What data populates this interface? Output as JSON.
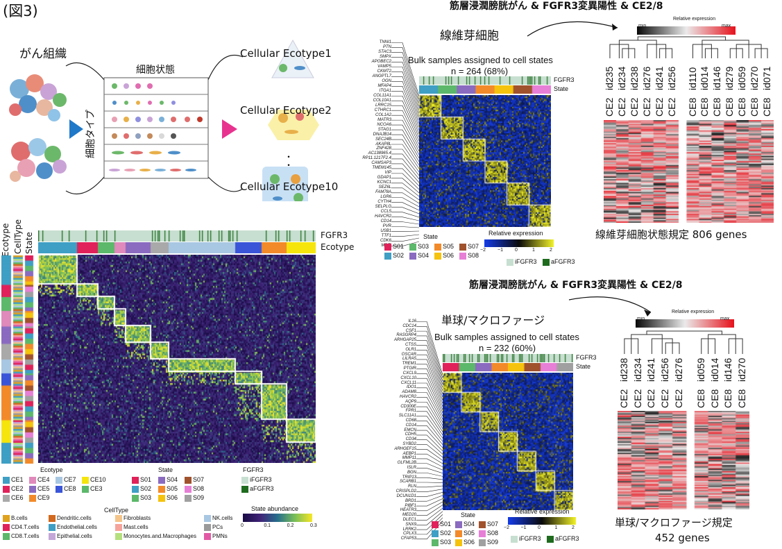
{
  "figure_label": "(図3)",
  "overview": {
    "tissue_label": "がん組織",
    "cell_state_label": "細胞状態",
    "cell_type_label": "細胞タイプ",
    "ecotypes": [
      "Cellular Ecotype1",
      "Cellular Ecotype2",
      "Cellular Ecotype10"
    ],
    "ellipsis": "・\n・\n・"
  },
  "main_heatmap": {
    "fgfr3_label": "FGFR3",
    "ecotype_label": "Ecotype",
    "side_labels": [
      "Ecotype",
      "CellType",
      "State"
    ]
  },
  "legends": {
    "ecotype_title": "Ecotype",
    "ecotype_items": [
      "CE1",
      "CE4",
      "CE7",
      "CE10",
      "CE2",
      "CE5",
      "CE8",
      "CE3",
      "CE6",
      "CE9"
    ],
    "ecotype_colors": {
      "CE1": "#3f9fc4",
      "CE2": "#e0215a",
      "CE3": "#5cb86a",
      "CE4": "#e089bb",
      "CE5": "#8a6bc0",
      "CE6": "#a9a9a9",
      "CE7": "#a8c7e2",
      "CE8": "#3a55d8",
      "CE9": "#f28a2a",
      "CE10": "#f5e50d"
    },
    "state_title": "State",
    "state_items": [
      "S01",
      "S04",
      "S07",
      "S02",
      "S05",
      "S08",
      "S03",
      "S06",
      "S09"
    ],
    "state_colors": {
      "S01": "#e0215a",
      "S02": "#3f9fc4",
      "S03": "#5cb86a",
      "S04": "#8a6bc0",
      "S05": "#f28a2a",
      "S06": "#f5c30d",
      "S07": "#a0522d",
      "S08": "#e77fd6",
      "S09": "#a0a0a0"
    },
    "fgfr3_title": "FGFR3",
    "fgfr3_items": [
      "iFGFR3",
      "aFGFR3"
    ],
    "fgfr3_colors": {
      "iFGFR3": "#c7dfd0",
      "aFGFR3": "#1e6b1e"
    },
    "celltype_title": "CellType",
    "celltype_items": [
      "B.cells",
      "Dendritic.cells",
      "Fibroblasts",
      "NK.cells",
      "CD4.T.cells",
      "Endothelial.cells",
      "Mast.cells",
      "PCs",
      "CD8.T.cells",
      "Epithelial.cells",
      "Monocytes.and.Macrophages",
      "PMNs"
    ],
    "celltype_colors": {
      "B.cells": "#e0a21d",
      "Dendritic.cells": "#d2691e",
      "Fibroblasts": "#f5c48a",
      "NK.cells": "#a8c7e2",
      "CD4.T.cells": "#e0215a",
      "Endothelial.cells": "#3f9fc4",
      "Mast.cells": "#f6a39b",
      "PCs": "#9a9a9a",
      "CD8.T.cells": "#5cb86a",
      "Epithelial.cells": "#c4a6d8",
      "Monocytes.and.Macrophages": "#b5e07d",
      "PMNs": "#e25aa5"
    },
    "abundance_title": "State abundance",
    "abundance_ticks": [
      "0",
      "0.1",
      "0.2",
      "0.3"
    ]
  },
  "fibro": {
    "cell_label": "線維芽細胞",
    "bulk_title": "Bulk samples assigned to cell states",
    "bulk_n": "n = 264 (68%)",
    "fgfr3_label": "FGFR3",
    "state_label": "State",
    "genes": [
      "TNNI1",
      "PTN",
      "STAC3",
      "SMPX",
      "APOBEC2",
      "VAMP5",
      "CKMT2",
      "ANGPTL7",
      "OGN",
      "MFAP4",
      "ITGA1",
      "COL11A1",
      "COL10A1",
      "LRRC15",
      "CTHRC1",
      "COL1A2",
      "MATR3",
      "NCOA6",
      "STAG1",
      "DNAJB14",
      "SEC24B",
      "AKAP8L",
      "ZNF428",
      "AC138965.4",
      "RP11.1217F2.4",
      "CAMSAP3",
      "TMEM145",
      "VIP",
      "GDAP1",
      "KCNC1",
      "SEZ6L",
      "FAM78A",
      "LGR6",
      "CYTH4",
      "SELPLG",
      "CCL5",
      "HAVCR2",
      "CD14",
      "PVR",
      "USB1",
      "TTF1",
      "CDK6",
      "MDFI"
    ],
    "colorbar_title": "Relative expression",
    "colorbar_ticks": [
      "−2",
      "−1",
      "0",
      "1",
      "2"
    ],
    "state_legend": [
      "S01",
      "S03",
      "S05",
      "S07",
      "S02",
      "S04",
      "S06",
      "S08"
    ],
    "fgfr3_legend": [
      "iFGFR3",
      "aFGFR3"
    ]
  },
  "fibro_right": {
    "title": "筋層浸潤膀胱がん & FGFR3変異陽性 & CE2/8",
    "colorbar_title": "Relative\nexpression",
    "min_label": "min",
    "max_label": "max",
    "ce2_samples": [
      [
        "CE2",
        "id235"
      ],
      [
        "CE2",
        "id234"
      ],
      [
        "CE2",
        "id238"
      ],
      [
        "CE2",
        "id276"
      ],
      [
        "CE2",
        "id241"
      ],
      [
        "CE2",
        "id256"
      ]
    ],
    "ce8_samples": [
      [
        "CE8",
        "id110"
      ],
      [
        "CE8",
        "id014"
      ],
      [
        "CE8",
        "id146"
      ],
      [
        "CE8",
        "id279"
      ],
      [
        "CE8",
        "id059"
      ],
      [
        "CE8",
        "id270"
      ],
      [
        "CE8",
        "id071"
      ]
    ],
    "caption": "線維芽細胞状態規定 806 genes"
  },
  "mono": {
    "cell_label": "単球/マクロファージ",
    "bulk_title": "Bulk samples assigned to cell states",
    "bulk_n": "n = 232 (60%)",
    "fgfr3_label": "FGFR3",
    "state_label": "State",
    "genes": [
      "IL16",
      "CDC14",
      "CSF1",
      "RASGRP4",
      "ARHGAP25",
      "CTSS",
      "OLR1",
      "OSCAR",
      "LILRA5",
      "TREM1",
      "PTGIR",
      "CXCL9",
      "CXCL10",
      "CXCL11",
      "IDO1",
      "ADAM8",
      "HAVCR2",
      "AQP9",
      "CD300E",
      "FPR1",
      "SLC11A1",
      "CD68",
      "CD14",
      "EMCN",
      "CDH5",
      "CD34",
      "SYBD2",
      "ARHGEF15",
      "AEBP1",
      "MMP11",
      "OLFML2B",
      "ISLR",
      "BGN",
      "TRIP13",
      "SCARB1",
      "RLN",
      "CRISPLD2",
      "DCUN1D1",
      "BRD1",
      "PIBF1",
      "HEATR3",
      "MED20",
      "DLEC1",
      "SNX9",
      "LRRK2",
      "CPLX3",
      "CFAP53"
    ],
    "colorbar_title": "Relative expression",
    "colorbar_ticks": [
      "−2",
      "−1",
      "0",
      "1",
      "2"
    ],
    "state_legend": [
      "S01",
      "S04",
      "S07",
      "S02",
      "S05",
      "S08",
      "S03",
      "S06",
      "S09"
    ],
    "fgfr3_legend": [
      "iFGFR3",
      "aFGFR3"
    ]
  },
  "mono_right": {
    "title": "筋層浸潤膀胱がん & FGFR3変異陽性 & CE2/8",
    "colorbar_title": "Relative\nexpression",
    "min_label": "min",
    "max_label": "max",
    "ce2_samples": [
      [
        "CE2",
        "id238"
      ],
      [
        "CE2",
        "id234"
      ],
      [
        "CE2",
        "id241"
      ],
      [
        "CE2",
        "id256"
      ],
      [
        "CE2",
        "id276"
      ]
    ],
    "ce8_samples": [
      [
        "CE8",
        "id059"
      ],
      [
        "CE8",
        "id014"
      ],
      [
        "CE8",
        "id146"
      ],
      [
        "CE8",
        "id270"
      ]
    ],
    "caption_line1": "単球/マクロファージ規定",
    "caption_line2": "452 genes"
  }
}
